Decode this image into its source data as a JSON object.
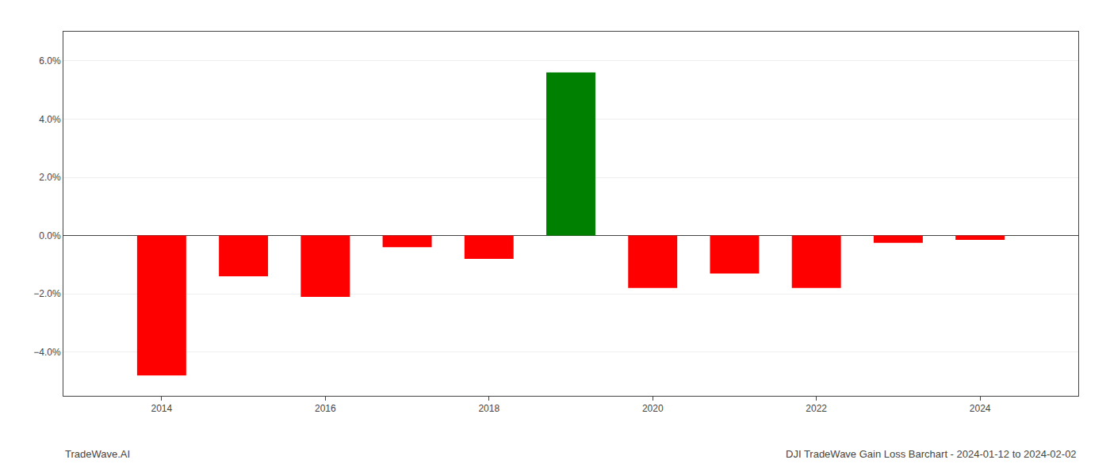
{
  "chart_data": {
    "type": "bar",
    "x": [
      2014,
      2015,
      2016,
      2017,
      2018,
      2019,
      2020,
      2021,
      2022,
      2023,
      2024
    ],
    "values": [
      -4.8,
      -1.4,
      -2.1,
      -0.4,
      -0.8,
      5.6,
      -1.8,
      -1.3,
      -1.8,
      -0.25,
      -0.15
    ],
    "colors": [
      "#ff0000",
      "#ff0000",
      "#ff0000",
      "#ff0000",
      "#ff0000",
      "#008000",
      "#ff0000",
      "#ff0000",
      "#ff0000",
      "#ff0000",
      "#ff0000"
    ],
    "xlim": [
      2012.8,
      2025.2
    ],
    "xticks": [
      2014,
      2016,
      2018,
      2020,
      2022,
      2024
    ],
    "ylim": [
      -5.5,
      7.0
    ],
    "yticks": [
      {
        "value": -4.0,
        "label": "−4.0%"
      },
      {
        "value": -2.0,
        "label": "−2.0%"
      },
      {
        "value": 0.0,
        "label": "0.0%"
      },
      {
        "value": 2.0,
        "label": "2.0%"
      },
      {
        "value": 4.0,
        "label": "4.0%"
      },
      {
        "value": 6.0,
        "label": "6.0%"
      }
    ],
    "grid": true,
    "annotations": [
      "TradeWave.AI",
      "DJI TradeWave Gain Loss Barchart - 2024-01-12 to 2024-02-02"
    ]
  }
}
